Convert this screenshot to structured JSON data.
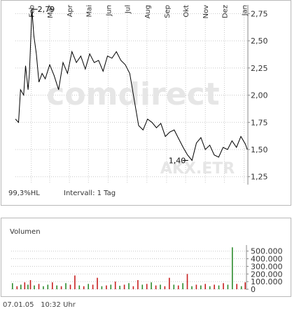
{
  "price_panel": {
    "watermark_brand": "comdirect",
    "watermark_symbol": "AKX.ETR",
    "info_left": "99,3%HL",
    "info_interval": "Intervall: 1 Tag"
  },
  "volume_panel": {
    "title": "Volumen"
  },
  "footer": {
    "date": "07.01.05",
    "time": "10:32 Uhr"
  },
  "colors": {
    "line": "#000000",
    "grid": "#c8c8c8",
    "axis_text": "#333333",
    "vol_up": "#2e8b2e",
    "vol_down": "#c82020",
    "watermark": "#e6e6e6"
  },
  "chart_data": [
    {
      "type": "line",
      "title": "",
      "xlabel": "",
      "ylabel": "",
      "x_ticks": [
        "Feb",
        "Mär",
        "Apr",
        "Mai",
        "Jun",
        "Jul",
        "Aug",
        "Sep",
        "Okt",
        "Nov",
        "Dez",
        "Jan"
      ],
      "y_ticks": [
        "2,75",
        "2,50",
        "2,25",
        "2,00",
        "1,75",
        "1,50",
        "1,25"
      ],
      "ylim": [
        1.19,
        2.83
      ],
      "grid": true,
      "annotations": [
        {
          "label": "2,79",
          "x": "2004-02-02",
          "y": 2.79
        },
        {
          "label": "1,40",
          "x": "2004-10-05",
          "y": 1.4
        }
      ],
      "series": [
        {
          "x": [
            "2004-01-07",
            "2004-01-12",
            "2004-01-15",
            "2004-01-20",
            "2004-01-23",
            "2004-01-27",
            "2004-01-29",
            "2004-02-02",
            "2004-02-05",
            "2004-02-09",
            "2004-02-13",
            "2004-02-18",
            "2004-02-23",
            "2004-03-01",
            "2004-03-08",
            "2004-03-15",
            "2004-03-22",
            "2004-03-29",
            "2004-04-05",
            "2004-04-12",
            "2004-04-19",
            "2004-04-26",
            "2004-05-03",
            "2004-05-10",
            "2004-05-17",
            "2004-05-24",
            "2004-05-31",
            "2004-06-07",
            "2004-06-14",
            "2004-06-21",
            "2004-06-28",
            "2004-07-05",
            "2004-07-12",
            "2004-07-19",
            "2004-07-26",
            "2004-08-02",
            "2004-08-09",
            "2004-08-16",
            "2004-08-23",
            "2004-08-30",
            "2004-09-06",
            "2004-09-13",
            "2004-09-20",
            "2004-09-27",
            "2004-10-04",
            "2004-10-11",
            "2004-10-18",
            "2004-10-25",
            "2004-11-01",
            "2004-11-08",
            "2004-11-15",
            "2004-11-22",
            "2004-11-29",
            "2004-12-06",
            "2004-12-13",
            "2004-12-20",
            "2004-12-27",
            "2005-01-03",
            "2005-01-06"
          ],
          "y": [
            1.78,
            1.75,
            2.05,
            2.0,
            2.27,
            2.05,
            2.2,
            2.79,
            2.55,
            2.38,
            2.12,
            2.2,
            2.15,
            2.28,
            2.18,
            2.05,
            2.3,
            2.2,
            2.4,
            2.3,
            2.36,
            2.24,
            2.38,
            2.3,
            2.32,
            2.22,
            2.36,
            2.34,
            2.4,
            2.32,
            2.28,
            2.2,
            1.96,
            1.72,
            1.68,
            1.78,
            1.75,
            1.7,
            1.74,
            1.62,
            1.66,
            1.68,
            1.6,
            1.52,
            1.45,
            1.4,
            1.56,
            1.61,
            1.5,
            1.54,
            1.45,
            1.43,
            1.52,
            1.5,
            1.58,
            1.52,
            1.62,
            1.55,
            1.5
          ]
        }
      ]
    },
    {
      "type": "bar",
      "title": "",
      "y_ticks": [
        "500.000",
        "400.000",
        "300.000",
        "200.000",
        "100.000",
        "0"
      ],
      "ylim": [
        0,
        580000
      ],
      "grid": true,
      "x_range": [
        "2004-01-07",
        "2005-01-07"
      ],
      "series": [
        {
          "name": "",
          "x": [
            "2004-01-09",
            "2004-01-16",
            "2004-01-22",
            "2004-01-28",
            "2004-02-02",
            "2004-02-06",
            "2004-02-12",
            "2004-02-19",
            "2004-02-26",
            "2004-03-04",
            "2004-03-11",
            "2004-03-18",
            "2004-03-25",
            "2004-04-01",
            "2004-04-08",
            "2004-04-15",
            "2004-04-22",
            "2004-04-29",
            "2004-05-06",
            "2004-05-13",
            "2004-05-20",
            "2004-05-27",
            "2004-06-03",
            "2004-06-10",
            "2004-06-17",
            "2004-06-24",
            "2004-07-01",
            "2004-07-08",
            "2004-07-15",
            "2004-07-22",
            "2004-07-29",
            "2004-08-05",
            "2004-08-12",
            "2004-08-19",
            "2004-08-26",
            "2004-09-02",
            "2004-09-09",
            "2004-09-16",
            "2004-09-23",
            "2004-09-30",
            "2004-10-07",
            "2004-10-14",
            "2004-10-21",
            "2004-10-28",
            "2004-11-04",
            "2004-11-11",
            "2004-11-18",
            "2004-11-25",
            "2004-12-02",
            "2004-12-09",
            "2004-12-16",
            "2004-12-23",
            "2004-12-30",
            "2005-01-05"
          ],
          "values": [
            80000,
            40000,
            60000,
            90000,
            60000,
            120000,
            50000,
            70000,
            40000,
            60000,
            90000,
            50000,
            40000,
            80000,
            60000,
            180000,
            50000,
            40000,
            70000,
            60000,
            150000,
            40000,
            50000,
            60000,
            100000,
            45000,
            60000,
            80000,
            40000,
            120000,
            60000,
            70000,
            90000,
            50000,
            60000,
            40000,
            150000,
            60000,
            50000,
            80000,
            200000,
            40000,
            60000,
            50000,
            70000,
            40000,
            60000,
            50000,
            80000,
            60000,
            550000,
            70000,
            40000,
            90000
          ],
          "direction": [
            "up",
            "down",
            "up",
            "down",
            "up",
            "down",
            "up",
            "down",
            "up",
            "up",
            "down",
            "up",
            "down",
            "up",
            "down",
            "down",
            "up",
            "down",
            "up",
            "down",
            "down",
            "up",
            "down",
            "up",
            "down",
            "up",
            "down",
            "up",
            "down",
            "down",
            "up",
            "down",
            "up",
            "down",
            "up",
            "down",
            "down",
            "up",
            "down",
            "up",
            "down",
            "up",
            "down",
            "up",
            "down",
            "up",
            "down",
            "up",
            "down",
            "up",
            "up",
            "down",
            "up",
            "down"
          ]
        }
      ]
    }
  ]
}
